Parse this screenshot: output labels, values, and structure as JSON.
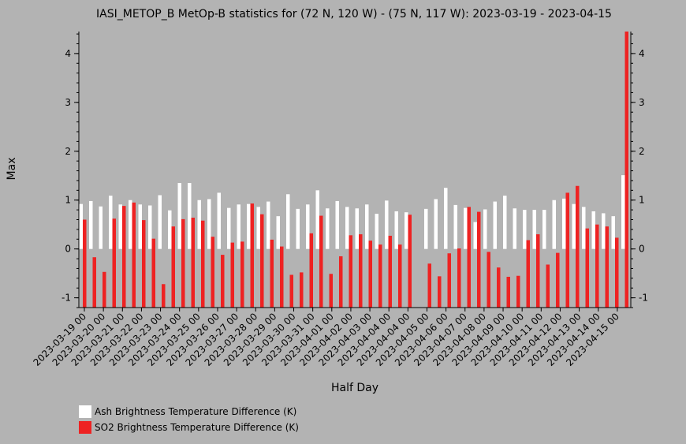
{
  "chart_data": {
    "type": "bar",
    "title": "IASI_METOP_B MetOp-B statistics for (72 N, 120 W) - (75 N, 117 W): 2023-03-19 - 2023-04-15",
    "xlabel": "Half Day",
    "ylabel": "Max",
    "ylim": [
      -1.2,
      4.45
    ],
    "yticks": [
      -1,
      0,
      1,
      2,
      3,
      4
    ],
    "x_tick_labels": [
      "2023-03-19 00",
      "2023-03-20 00",
      "2023-03-21 00",
      "2023-03-22 00",
      "2023-03-23 00",
      "2023-03-24 00",
      "2023-03-25 00",
      "2023-03-26 00",
      "2023-03-27 00",
      "2023-03-28 00",
      "2023-03-29 00",
      "2023-03-30 00",
      "2023-03-31 00",
      "2023-04-01 00",
      "2023-04-02 00",
      "2023-04-03 00",
      "2023-04-04 00",
      "2023-04-04 00",
      "2023-04-05 00",
      "2023-04-06 00",
      "2023-04-07 00",
      "2023-04-08 00",
      "2023-04-09 00",
      "2023-04-10 00",
      "2023-04-11 00",
      "2023-04-12 00",
      "2023-04-13 00",
      "2023-04-14 00",
      "2023-04-15 00"
    ],
    "grid": false,
    "legend_position": "bottom-left",
    "series": [
      {
        "name": "Ash Brightness Temperature Difference (K)",
        "color": "#ffffff",
        "values": [
          0.92,
          0.98,
          0.87,
          1.09,
          0.91,
          1.0,
          0.91,
          0.89,
          1.1,
          0.79,
          1.35,
          1.35,
          1.0,
          1.02,
          1.15,
          0.84,
          0.91,
          0.92,
          0.86,
          0.97,
          0.67,
          1.12,
          0.82,
          0.91,
          1.2,
          0.83,
          0.98,
          0.86,
          0.83,
          0.91,
          0.72,
          0.99,
          0.77,
          0.75,
          null,
          0.82,
          1.02,
          1.25,
          0.9,
          0.84,
          0.55,
          0.81,
          0.97,
          1.09,
          0.83,
          0.8,
          0.8,
          0.8,
          1.0,
          1.03,
          0.92,
          0.86,
          0.77,
          0.73,
          0.67,
          1.51
        ]
      },
      {
        "name": "SO2 Brightness Temperature Difference (K)",
        "color": "#ee2222",
        "values": [
          0.6,
          -0.17,
          -0.47,
          0.62,
          0.88,
          0.95,
          0.59,
          0.21,
          -0.72,
          0.46,
          0.61,
          0.64,
          0.58,
          0.25,
          -0.12,
          0.13,
          0.15,
          0.93,
          0.71,
          0.19,
          0.05,
          -0.53,
          -0.48,
          0.32,
          0.68,
          -0.51,
          -0.15,
          0.28,
          0.3,
          0.17,
          0.09,
          0.27,
          0.09,
          0.7,
          null,
          -0.3,
          -0.56,
          -0.09,
          0.01,
          0.86,
          0.76,
          -0.06,
          -0.38,
          -0.57,
          -0.55,
          0.18,
          0.3,
          -0.32,
          -0.08,
          1.15,
          1.29,
          0.42,
          0.5,
          0.46,
          0.23,
          4.45
        ]
      }
    ]
  }
}
